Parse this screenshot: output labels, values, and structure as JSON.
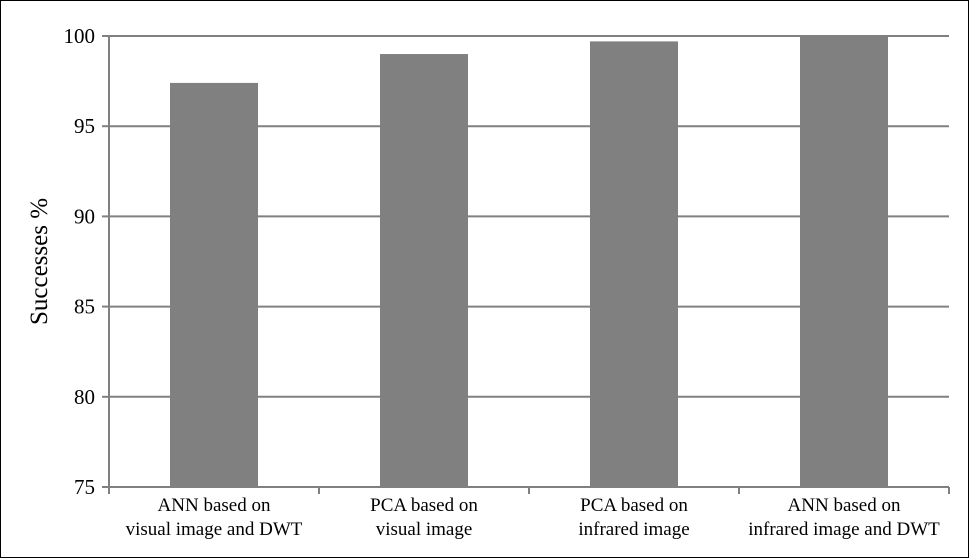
{
  "chart_data": {
    "type": "bar",
    "categories": [
      [
        "ANN based on",
        "visual image and DWT"
      ],
      [
        "PCA based on",
        "visual image"
      ],
      [
        "PCA based on",
        "infrared image"
      ],
      [
        "ANN based on",
        "infrared image and DWT"
      ]
    ],
    "values": [
      97.4,
      99.0,
      99.7,
      100.0
    ],
    "title": "",
    "xlabel": "",
    "ylabel": "Successes %",
    "ylim": [
      75,
      100
    ],
    "yticks": [
      75,
      80,
      85,
      90,
      95,
      100
    ],
    "grid": true,
    "legend": "none",
    "colors": {
      "bar": "#808080",
      "grid": "#808080",
      "axis": "#808080"
    }
  }
}
